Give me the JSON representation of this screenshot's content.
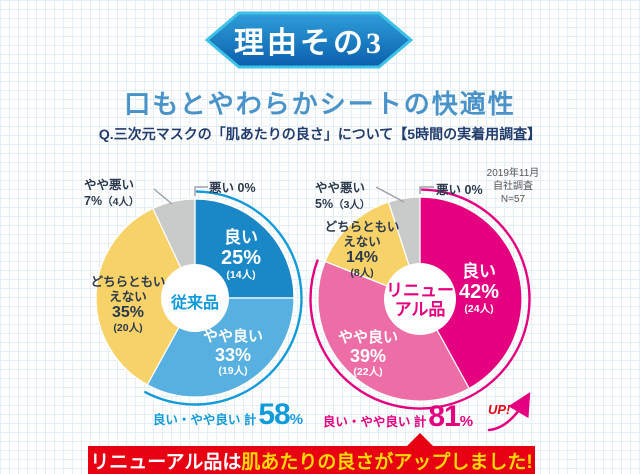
{
  "page": {
    "badge_label": "理由その3",
    "title": "口もとやわらかシートの快適性",
    "question": "Q.三次元マスクの「肌あたりの良さ」について【5時間の実着用調査】",
    "survey_note": {
      "line1": "2019年11月",
      "line2": "自社調査",
      "line3": "N=57"
    }
  },
  "colors": {
    "accent_blue": "#129bd9",
    "accent_magenta": "#e4007f",
    "banner_red": "#e60012",
    "banner_yellow": "#ffd900",
    "yellow_slice": "#f7d269",
    "gray_slice": "#c9caca"
  },
  "chart_data": [
    {
      "type": "pie",
      "product": "従来品",
      "center_label": "従来品",
      "accent": "#129bd9",
      "slices": [
        {
          "label": "良い",
          "pct": 25,
          "pct_display": "25%",
          "count_display": "(14人)",
          "color": "#1a87c6",
          "highlight": true
        },
        {
          "label": "やや良い",
          "pct": 33,
          "pct_display": "33%",
          "count_display": "(19人)",
          "color": "#57b0e0",
          "highlight": true
        },
        {
          "label": "どちらともいえない",
          "pct": 35,
          "pct_display": "35%",
          "count_display": "(20人)",
          "color": "#f7d269"
        },
        {
          "label": "やや悪い",
          "pct": 7,
          "pct_display": "7%",
          "count_display": "（4人）",
          "color": "#c9caca"
        },
        {
          "label": "悪い",
          "pct": 0,
          "pct_display": "0%",
          "count_display": "",
          "color": "#c9caca"
        }
      ],
      "total_label": "良い・やや良い 計",
      "total_value": "58",
      "total_unit": "%"
    },
    {
      "type": "pie",
      "product": "リニューアル品",
      "center_label": "リニュー\nアル品",
      "accent": "#e4007f",
      "slices": [
        {
          "label": "良い",
          "pct": 42,
          "pct_display": "42%",
          "count_display": "(24人)",
          "color": "#e4007f",
          "highlight": true
        },
        {
          "label": "やや良い",
          "pct": 39,
          "pct_display": "39%",
          "count_display": "(22人)",
          "color": "#ed6ea7",
          "highlight": true
        },
        {
          "label": "どちらともいえない",
          "pct": 14,
          "pct_display": "14%",
          "count_display": "(8人)",
          "color": "#f7d269"
        },
        {
          "label": "やや悪い",
          "pct": 5,
          "pct_display": "5%",
          "count_display": "（3人）",
          "color": "#c9caca"
        },
        {
          "label": "悪い",
          "pct": 0,
          "pct_display": "0%",
          "count_display": "",
          "color": "#c9caca"
        }
      ],
      "total_label": "良い・やや良い 計",
      "total_value": "81",
      "total_unit": "%",
      "up_label": "UP!"
    }
  ],
  "banner": {
    "text_white": "リニューアル品は",
    "text_yellow": "肌あたりの良さがアップしました!"
  }
}
